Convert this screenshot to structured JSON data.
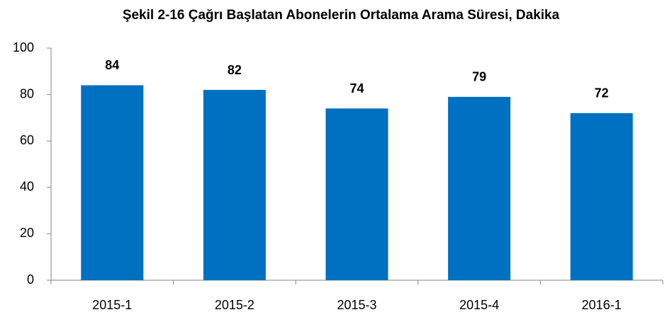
{
  "chart_data": {
    "type": "bar",
    "title": "Şekil 2-16 Çağrı Başlatan Abonelerin Ortalama Arama Süresi, Dakika",
    "categories": [
      "2015-1",
      "2015-2",
      "2015-3",
      "2015-4",
      "2016-1"
    ],
    "values": [
      84,
      82,
      74,
      79,
      72
    ],
    "color": "#0070c0",
    "ylim": [
      0,
      100
    ],
    "yticks": [
      0,
      20,
      40,
      60,
      80,
      100
    ],
    "grid": false
  }
}
